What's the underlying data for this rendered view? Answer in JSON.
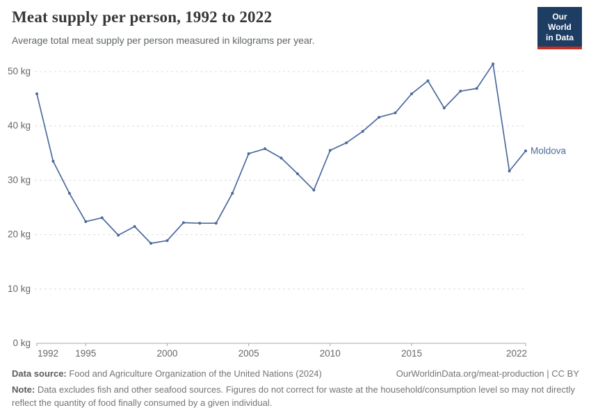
{
  "header": {
    "title": "Meat supply per person, 1992 to 2022",
    "subtitle": "Average total meat supply per person measured in kilograms per year.",
    "logo": {
      "line1": "Our World",
      "line2": "in Data",
      "bg_color": "#1d3d63",
      "accent_color": "#c62f24"
    }
  },
  "chart_data": {
    "type": "line",
    "title": "Meat supply per person, 1992 to 2022",
    "unit": "kg",
    "xlim": [
      1992,
      2022
    ],
    "ylim": [
      0,
      50
    ],
    "grid": "horizontal-dashed",
    "legend_position": "end-of-line-label",
    "xticks": [
      1992,
      1995,
      2000,
      2005,
      2010,
      2015,
      2022
    ],
    "xtick_labels": [
      "1992",
      "1995",
      "2000",
      "2005",
      "2010",
      "2015",
      "2022"
    ],
    "yticks": [
      0,
      10,
      20,
      30,
      40,
      50
    ],
    "ytick_labels": [
      "0 kg",
      "10 kg",
      "20 kg",
      "30 kg",
      "40 kg",
      "50 kg"
    ],
    "series": [
      {
        "name": "Moldova",
        "color": "#4C6A9C",
        "x": [
          1992,
          1993,
          1994,
          1995,
          1996,
          1997,
          1998,
          1999,
          2000,
          2001,
          2002,
          2003,
          2004,
          2005,
          2006,
          2007,
          2008,
          2009,
          2010,
          2011,
          2012,
          2013,
          2014,
          2015,
          2016,
          2017,
          2018,
          2019,
          2020,
          2021,
          2022
        ],
        "values": [
          45.9,
          33.5,
          27.6,
          22.4,
          23.1,
          19.9,
          21.5,
          18.4,
          18.9,
          22.2,
          22.1,
          22.1,
          27.6,
          34.9,
          35.8,
          34.1,
          31.2,
          28.2,
          35.5,
          36.9,
          39.0,
          41.6,
          42.4,
          45.9,
          48.3,
          43.3,
          46.4,
          46.9,
          51.4,
          31.7,
          35.4
        ]
      }
    ]
  },
  "footer": {
    "datasource_label": "Data source:",
    "datasource_text": " Food and Agriculture Organization of the United Nations (2024)",
    "link_text": "OurWorldinData.org/meat-production | CC BY",
    "note_label": "Note:",
    "note_text": " Data excludes fish and other seafood sources. Figures do not correct for waste at the household/consumption level so may not directly reflect the quantity of food finally consumed by a given individual."
  }
}
